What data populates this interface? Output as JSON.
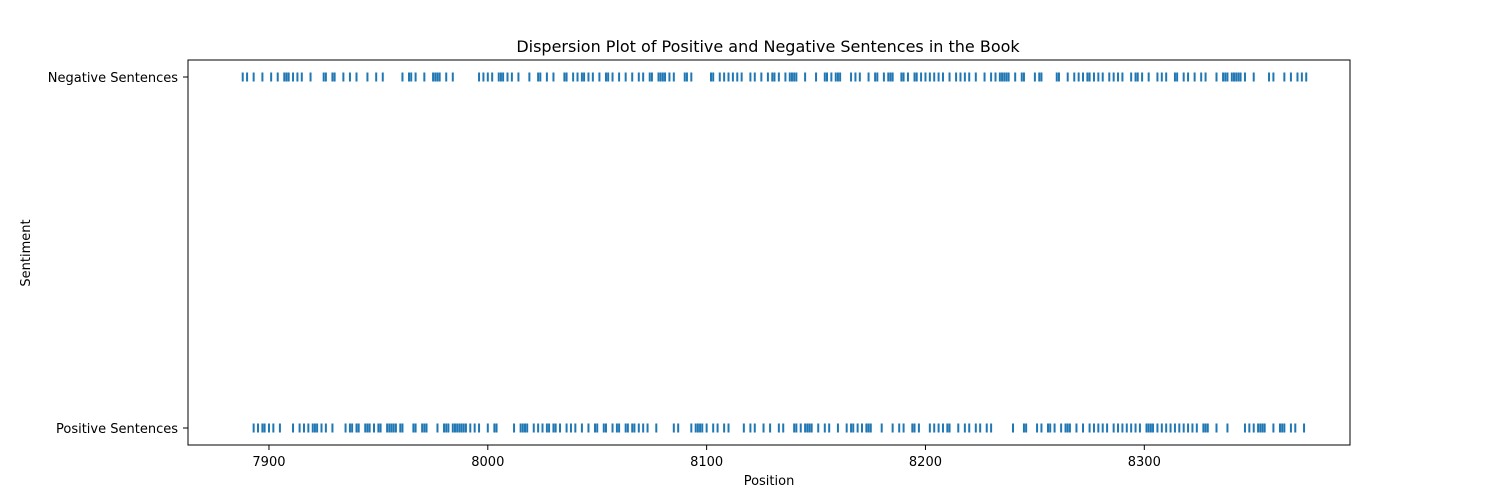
{
  "chart_data": {
    "type": "scatter",
    "title": "Dispersion Plot of Positive and Negative Sentences in the Book",
    "xlabel": "Position",
    "ylabel": "Sentiment",
    "xlim": [
      7863,
      8394
    ],
    "x_ticks": [
      7900,
      8000,
      8100,
      8200,
      8300
    ],
    "categories": [
      "Positive Sentences",
      "Negative Sentences"
    ],
    "grid": false,
    "marker": "|",
    "color": "#1f77b4",
    "series": [
      {
        "name": "Negative Sentences",
        "x": [
          7888,
          7890,
          7893,
          7897,
          7901,
          7904,
          7907,
          7908,
          7909,
          7911,
          7913,
          7915,
          7919,
          7925,
          7926,
          7929,
          7930,
          7934,
          7937,
          7940,
          7945,
          7949,
          7952,
          7961,
          7964,
          7965,
          7967,
          7971,
          7975,
          7976,
          7977,
          7978,
          7981,
          7984,
          7996,
          7998,
          8000,
          8002,
          8005,
          8006,
          8007,
          8009,
          8011,
          8014,
          8019,
          8023,
          8024,
          8027,
          8030,
          8035,
          8036,
          8039,
          8041,
          8043,
          8044,
          8046,
          8048,
          8051,
          8054,
          8055,
          8057,
          8060,
          8063,
          8066,
          8069,
          8071,
          8074,
          8075,
          8078,
          8079,
          8080,
          8081,
          8083,
          8085,
          8090,
          8091,
          8093,
          8102,
          8103,
          8106,
          8108,
          8110,
          8112,
          8114,
          8116,
          8120,
          8122,
          8125,
          8128,
          8130,
          8131,
          8133,
          8136,
          8138,
          8139,
          8140,
          8141,
          8145,
          8150,
          8154,
          8155,
          8157,
          8159,
          8160,
          8161,
          8166,
          8168,
          8170,
          8174,
          8177,
          8178,
          8181,
          8183,
          8184,
          8185,
          8189,
          8190,
          8192,
          8195,
          8196,
          8198,
          8200,
          8202,
          8204,
          8206,
          8208,
          8211,
          8214,
          8216,
          8218,
          8220,
          8223,
          8227,
          8230,
          8232,
          8234,
          8235,
          8236,
          8237,
          8238,
          8241,
          8244,
          8245,
          8250,
          8252,
          8253,
          8260,
          8261,
          8265,
          8268,
          8270,
          8272,
          8274,
          8275,
          8277,
          8279,
          8281,
          8284,
          8286,
          8288,
          8290,
          8294,
          8296,
          8297,
          8299,
          8302,
          8306,
          8308,
          8310,
          8314,
          8315,
          8318,
          8320,
          8323,
          8326,
          8328,
          8333,
          8336,
          8337,
          8338,
          8340,
          8341,
          8342,
          8343,
          8344,
          8346,
          8350,
          8357,
          8359,
          8364,
          8367,
          8370,
          8372,
          8374
        ]
      },
      {
        "name": "Positive Sentences",
        "x": [
          7893,
          7895,
          7897,
          7898,
          7900,
          7902,
          7905,
          7911,
          7914,
          7916,
          7918,
          7920,
          7921,
          7922,
          7924,
          7926,
          7929,
          7935,
          7937,
          7938,
          7940,
          7941,
          7944,
          7945,
          7946,
          7948,
          7950,
          7951,
          7954,
          7955,
          7956,
          7957,
          7958,
          7960,
          7961,
          7966,
          7967,
          7970,
          7971,
          7972,
          7977,
          7980,
          7981,
          7982,
          7984,
          7985,
          7986,
          7987,
          7988,
          7989,
          7990,
          7992,
          7994,
          7996,
          8000,
          8003,
          8004,
          8012,
          8015,
          8016,
          8017,
          8018,
          8021,
          8023,
          8025,
          8027,
          8028,
          8030,
          8031,
          8033,
          8036,
          8038,
          8040,
          8043,
          8046,
          8049,
          8050,
          8053,
          8054,
          8057,
          8059,
          8060,
          8063,
          8064,
          8066,
          8067,
          8069,
          8071,
          8073,
          8077,
          8085,
          8087,
          8093,
          8095,
          8096,
          8097,
          8098,
          8100,
          8103,
          8105,
          8108,
          8110,
          8117,
          8120,
          8122,
          8126,
          8129,
          8133,
          8135,
          8140,
          8141,
          8143,
          8145,
          8146,
          8147,
          8148,
          8151,
          8154,
          8156,
          8160,
          8164,
          8166,
          8167,
          8169,
          8171,
          8173,
          8174,
          8175,
          8180,
          8185,
          8188,
          8190,
          8194,
          8195,
          8197,
          8202,
          8204,
          8206,
          8208,
          8210,
          8211,
          8215,
          8218,
          8220,
          8223,
          8225,
          8228,
          8230,
          8240,
          8245,
          8246,
          8251,
          8253,
          8256,
          8257,
          8259,
          8262,
          8264,
          8265,
          8266,
          8269,
          8272,
          8275,
          8277,
          8279,
          8281,
          8283,
          8286,
          8288,
          8290,
          8292,
          8294,
          8296,
          8298,
          8301,
          8302,
          8303,
          8304,
          8306,
          8308,
          8310,
          8312,
          8314,
          8316,
          8318,
          8320,
          8322,
          8324,
          8327,
          8328,
          8329,
          8333,
          8338,
          8346,
          8348,
          8350,
          8352,
          8353,
          8354,
          8355,
          8359,
          8362,
          8363,
          8364,
          8367,
          8369,
          8373
        ]
      }
    ]
  }
}
